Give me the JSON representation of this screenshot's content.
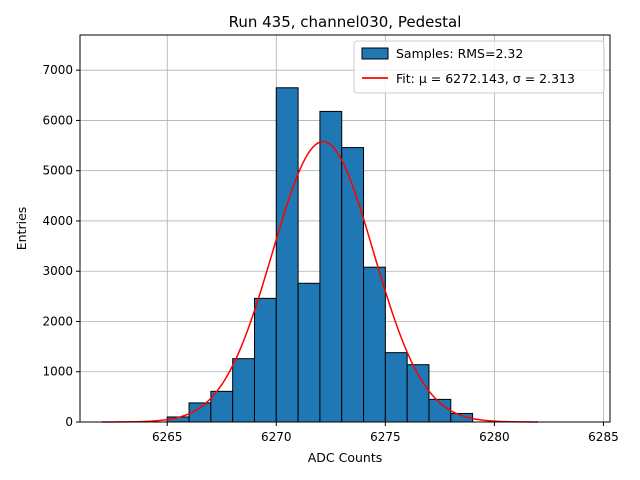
{
  "chart_data": {
    "type": "bar",
    "title": "Run 435, channel030, Pedestal",
    "xlabel": "ADC Counts",
    "ylabel": "Entries",
    "xlim": [
      6261,
      6285.3
    ],
    "ylim": [
      0,
      7700
    ],
    "xticks": [
      6265,
      6270,
      6275,
      6280,
      6285
    ],
    "yticks": [
      0,
      1000,
      2000,
      3000,
      4000,
      5000,
      6000,
      7000
    ],
    "grid": true,
    "legend_position": "top-right",
    "histogram": {
      "name": "Samples: RMS=2.32",
      "color": "#1f77b4",
      "edge_color": "#000000",
      "bin_edges": [
        6265,
        6266,
        6267,
        6268,
        6269,
        6270,
        6271,
        6272,
        6273,
        6274,
        6275,
        6276,
        6277,
        6278,
        6279
      ],
      "values": [
        100,
        380,
        610,
        1260,
        2460,
        6650,
        2760,
        6180,
        5460,
        3080,
        1380,
        1140,
        450,
        170
      ]
    },
    "fit": {
      "name": "Fit: μ = 6272.143, σ = 2.313",
      "color": "#ff0000",
      "mu": 6272.143,
      "sigma": 2.313,
      "amplitude": 5580,
      "x_range": [
        6262,
        6282
      ]
    }
  }
}
